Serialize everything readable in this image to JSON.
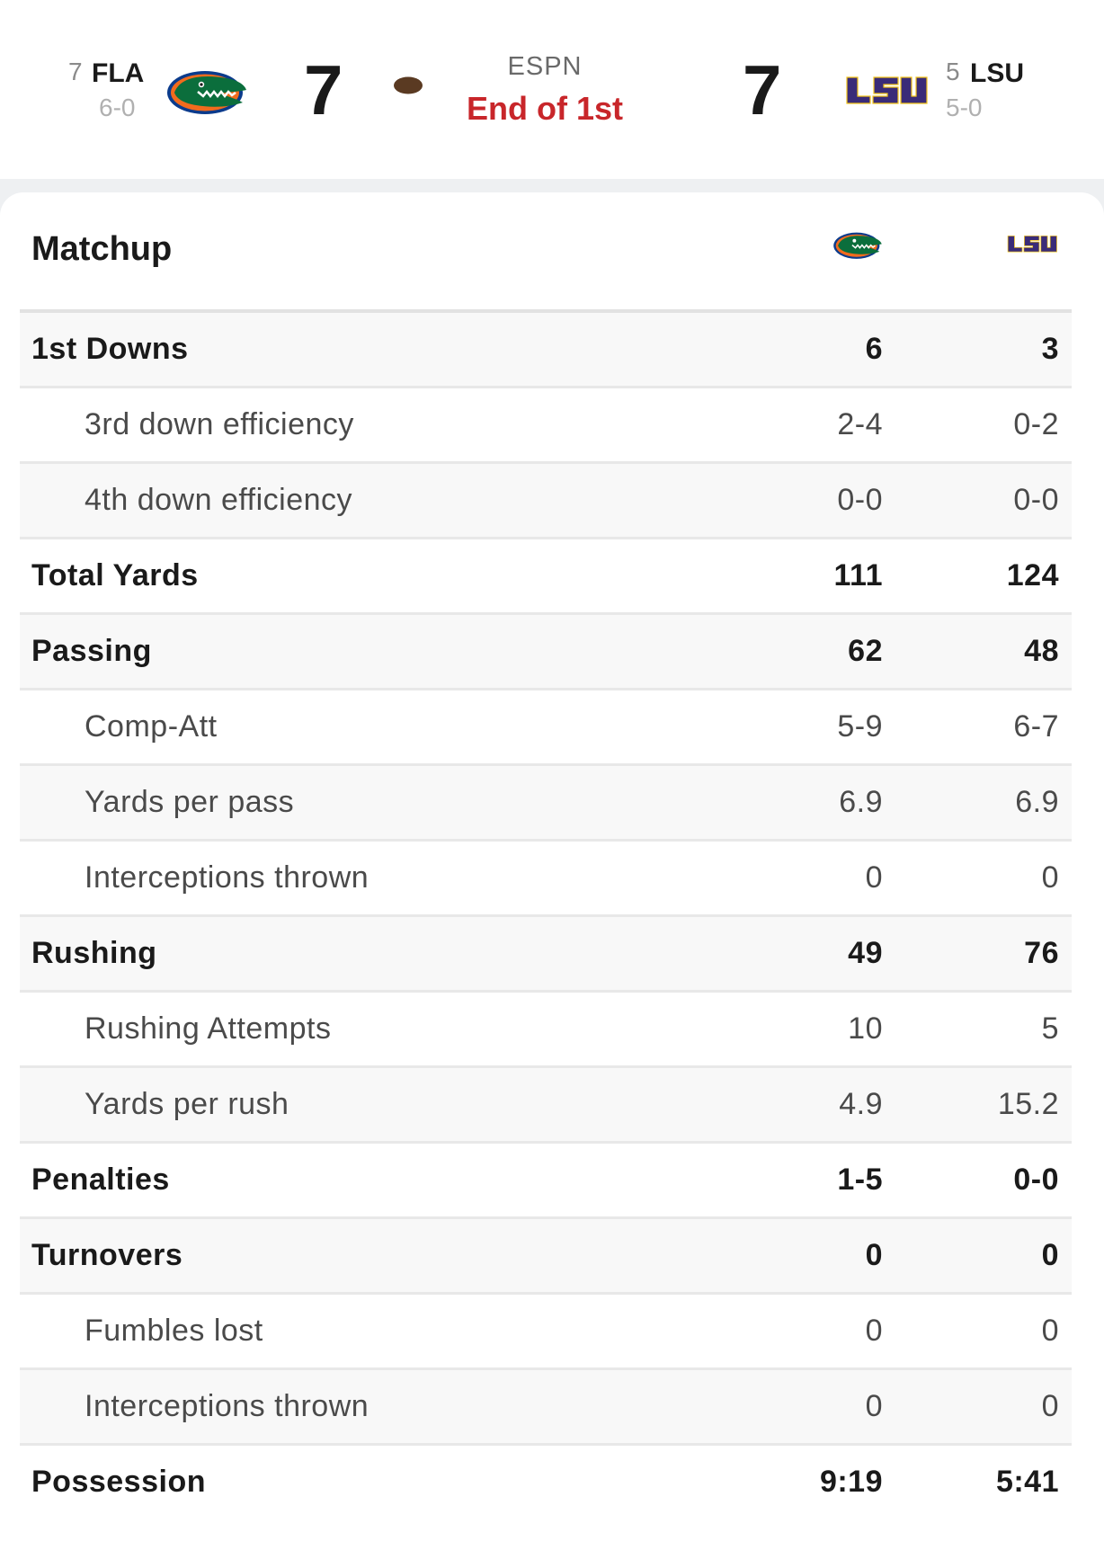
{
  "header": {
    "away": {
      "rank": "7",
      "abbr": "FLA",
      "record": "6-0",
      "score": "7",
      "logo_icon": "gator-logo-icon"
    },
    "home": {
      "rank": "5",
      "abbr": "LSU",
      "record": "5-0",
      "score": "7",
      "logo_icon": "lsu-logo-icon"
    },
    "network": "ESPN",
    "status": "End of 1st",
    "possession_icon": "football-icon"
  },
  "matchup": {
    "title": "Matchup",
    "rows": [
      {
        "label": "1st Downs",
        "fla": "6",
        "lsu": "3",
        "kind": "main"
      },
      {
        "label": "3rd down efficiency",
        "fla": "2-4",
        "lsu": "0-2",
        "kind": "sub"
      },
      {
        "label": "4th down efficiency",
        "fla": "0-0",
        "lsu": "0-0",
        "kind": "sub"
      },
      {
        "label": "Total Yards",
        "fla": "111",
        "lsu": "124",
        "kind": "main"
      },
      {
        "label": "Passing",
        "fla": "62",
        "lsu": "48",
        "kind": "main"
      },
      {
        "label": "Comp-Att",
        "fla": "5-9",
        "lsu": "6-7",
        "kind": "sub"
      },
      {
        "label": "Yards per pass",
        "fla": "6.9",
        "lsu": "6.9",
        "kind": "sub"
      },
      {
        "label": "Interceptions thrown",
        "fla": "0",
        "lsu": "0",
        "kind": "sub"
      },
      {
        "label": "Rushing",
        "fla": "49",
        "lsu": "76",
        "kind": "main"
      },
      {
        "label": "Rushing Attempts",
        "fla": "10",
        "lsu": "5",
        "kind": "sub"
      },
      {
        "label": "Yards per rush",
        "fla": "4.9",
        "lsu": "15.2",
        "kind": "sub"
      },
      {
        "label": "Penalties",
        "fla": "1-5",
        "lsu": "0-0",
        "kind": "main"
      },
      {
        "label": "Turnovers",
        "fla": "0",
        "lsu": "0",
        "kind": "main"
      },
      {
        "label": "Fumbles lost",
        "fla": "0",
        "lsu": "0",
        "kind": "sub"
      },
      {
        "label": "Interceptions thrown",
        "fla": "0",
        "lsu": "0",
        "kind": "sub"
      },
      {
        "label": "Possession",
        "fla": "9:19",
        "lsu": "5:41",
        "kind": "main"
      }
    ]
  },
  "colors": {
    "status_red": "#c8262a",
    "gator_green": "#0b6e3c",
    "gator_orange": "#f26b1d",
    "gator_blue": "#0b3b8c",
    "lsu_purple": "#3a2b78",
    "lsu_gold": "#f2c318",
    "football_brown": "#5a3a22"
  }
}
